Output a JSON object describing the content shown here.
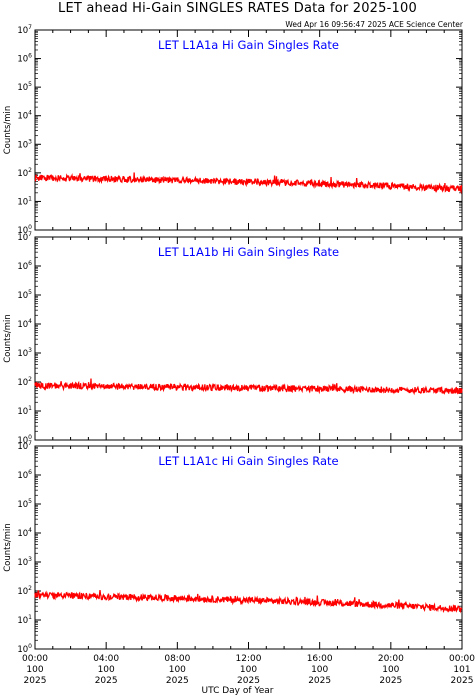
{
  "page": {
    "title": "LET ahead Hi-Gain SINGLES RATES Data for 2025-100",
    "timestamp": "Wed Apr 16 09:56:47 2025 ACE Science Center",
    "xlabel": "UTC Day of Year"
  },
  "colors": {
    "series": "#ff0000",
    "panel_title": "#0000ff",
    "axes": "#000000"
  },
  "chart_data": [
    {
      "type": "line",
      "title": "LET L1A1a Hi Gain Singles Rate",
      "ylabel": "Counts/min",
      "yscale": "log",
      "ylim": [
        1,
        10000000
      ],
      "yticks": [
        "10^0",
        "10^1",
        "10^2",
        "10^3",
        "10^4",
        "10^5",
        "10^6",
        "10^7"
      ],
      "xlim_hours": [
        0,
        24
      ],
      "xticks": [
        "00:00",
        "04:00",
        "08:00",
        "12:00",
        "16:00",
        "20:00",
        "00:00"
      ],
      "xtick_days": [
        "100",
        "100",
        "100",
        "100",
        "100",
        "100",
        "101"
      ],
      "xtick_years": [
        "2025",
        "2025",
        "2025",
        "2025",
        "2025",
        "2025",
        "2025"
      ],
      "series": [
        {
          "x_hours": [
            0,
            1,
            2,
            3,
            4,
            5,
            6,
            7,
            8,
            9,
            10,
            11,
            12,
            13,
            14,
            15,
            16,
            17,
            18,
            19,
            20,
            21,
            22,
            23,
            24
          ],
          "values": [
            68,
            66,
            64,
            63,
            62,
            60,
            58,
            57,
            55,
            53,
            52,
            50,
            48,
            46,
            45,
            43,
            42,
            40,
            38,
            37,
            35,
            33,
            31,
            29,
            28
          ]
        }
      ]
    },
    {
      "type": "line",
      "title": "LET L1A1b Hi Gain Singles Rate",
      "ylabel": "Counts/min",
      "yscale": "log",
      "ylim": [
        1,
        10000000
      ],
      "yticks": [
        "10^0",
        "10^1",
        "10^2",
        "10^3",
        "10^4",
        "10^5",
        "10^6",
        "10^7"
      ],
      "xlim_hours": [
        0,
        24
      ],
      "xticks": [
        "00:00",
        "04:00",
        "08:00",
        "12:00",
        "16:00",
        "20:00",
        "00:00"
      ],
      "xtick_days": [
        "100",
        "100",
        "100",
        "100",
        "100",
        "100",
        "101"
      ],
      "xtick_years": [
        "2025",
        "2025",
        "2025",
        "2025",
        "2025",
        "2025",
        "2025"
      ],
      "series": [
        {
          "x_hours": [
            0,
            1,
            2,
            3,
            4,
            5,
            6,
            7,
            8,
            9,
            10,
            11,
            12,
            13,
            14,
            15,
            16,
            17,
            18,
            19,
            20,
            21,
            22,
            23,
            24
          ],
          "values": [
            75,
            74,
            73,
            72,
            70,
            69,
            68,
            67,
            66,
            65,
            64,
            63,
            62,
            61,
            60,
            59,
            58,
            57,
            56,
            55,
            54,
            53,
            52,
            51,
            50
          ]
        }
      ]
    },
    {
      "type": "line",
      "title": "LET L1A1c Hi Gain Singles Rate",
      "ylabel": "Counts/min",
      "yscale": "log",
      "ylim": [
        1,
        10000000
      ],
      "yticks": [
        "10^0",
        "10^1",
        "10^2",
        "10^3",
        "10^4",
        "10^5",
        "10^6",
        "10^7"
      ],
      "xlim_hours": [
        0,
        24
      ],
      "xticks": [
        "00:00",
        "04:00",
        "08:00",
        "12:00",
        "16:00",
        "20:00",
        "00:00"
      ],
      "xtick_days": [
        "100",
        "100",
        "100",
        "100",
        "100",
        "100",
        "101"
      ],
      "xtick_years": [
        "2025",
        "2025",
        "2025",
        "2025",
        "2025",
        "2025",
        "2025"
      ],
      "series": [
        {
          "x_hours": [
            0,
            1,
            2,
            3,
            4,
            5,
            6,
            7,
            8,
            9,
            10,
            11,
            12,
            13,
            14,
            15,
            16,
            17,
            18,
            19,
            20,
            21,
            22,
            23,
            24
          ],
          "values": [
            72,
            70,
            68,
            66,
            64,
            62,
            60,
            58,
            56,
            54,
            52,
            50,
            48,
            46,
            44,
            42,
            40,
            38,
            36,
            34,
            32,
            30,
            28,
            26,
            25
          ]
        }
      ]
    }
  ]
}
